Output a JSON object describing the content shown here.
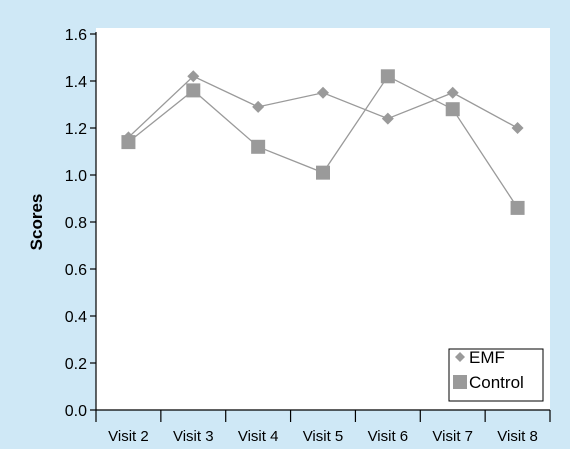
{
  "chart_data": {
    "type": "line",
    "categories": [
      "Visit 2",
      "Visit 3",
      "Visit 4",
      "Visit 5",
      "Visit 6",
      "Visit 7",
      "Visit 8"
    ],
    "series": [
      {
        "name": "EMF",
        "marker": "diamond",
        "color": "#9a9a9a",
        "values": [
          1.16,
          1.42,
          1.29,
          1.35,
          1.24,
          1.35,
          1.2
        ]
      },
      {
        "name": "Control",
        "marker": "square",
        "color": "#9a9a9a",
        "values": [
          1.14,
          1.36,
          1.12,
          1.01,
          1.42,
          1.28,
          0.86
        ]
      }
    ],
    "title": "",
    "xlabel": "",
    "ylabel": "Scores",
    "ylim": [
      0.0,
      1.6
    ],
    "yticks": [
      "0.0",
      "0.2",
      "0.4",
      "0.6",
      "0.8",
      "1.0",
      "1.2",
      "1.4",
      "1.6"
    ],
    "grid": false,
    "legend_position": "bottom-right",
    "background_color": "#cfe8f6",
    "plot_background_color": "#ffffff",
    "line_color": "#9a9a9a"
  }
}
